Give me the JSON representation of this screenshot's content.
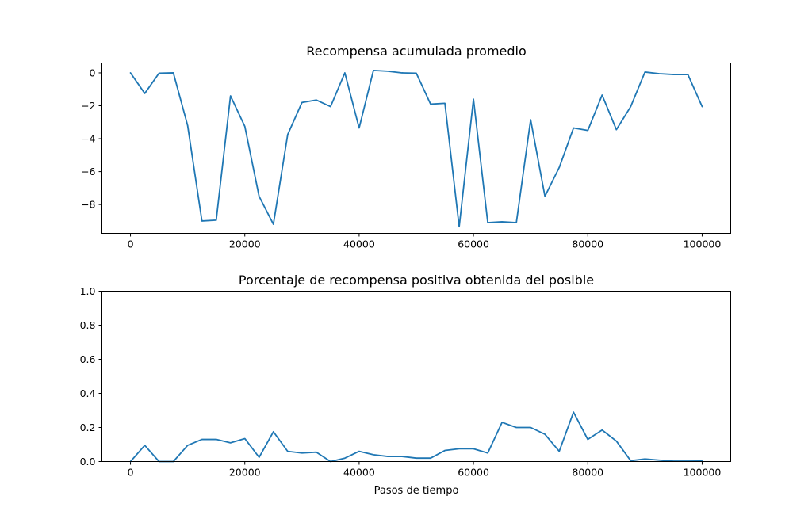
{
  "chart_data": [
    {
      "type": "line",
      "title": "Recompensa acumulada promedio",
      "xlabel": "",
      "ylabel": "",
      "xlim": [
        -5000,
        105000
      ],
      "ylim": [
        -9.75,
        0.6
      ],
      "xticks": [
        0,
        20000,
        40000,
        60000,
        80000,
        100000
      ],
      "xtick_labels": [
        "0",
        "20000",
        "40000",
        "60000",
        "80000",
        "100000"
      ],
      "yticks": [
        0,
        -2,
        -4,
        -6,
        -8
      ],
      "ytick_labels": [
        "0",
        "−2",
        "−4",
        "−6",
        "−8"
      ],
      "grid": false,
      "color": "#1f77b4",
      "series": [
        {
          "x": [
            0,
            2500,
            5000,
            7500,
            10000,
            12500,
            15000,
            17500,
            20000,
            22500,
            25000,
            27500,
            30000,
            32500,
            35000,
            37500,
            40000,
            42500,
            45000,
            47500,
            50000,
            52500,
            55000,
            57500,
            60000,
            62500,
            65000,
            67500,
            70000,
            72500,
            75000,
            77500,
            80000,
            82500,
            85000,
            87500,
            90000,
            92500,
            95000,
            97500,
            100000
          ],
          "values": [
            0,
            -1.25,
            -0.02,
            0,
            -3.2,
            -9.0,
            -8.95,
            -1.4,
            -3.25,
            -7.5,
            -9.2,
            -3.75,
            -1.8,
            -1.65,
            -2.05,
            0,
            -3.35,
            0.15,
            0.1,
            0,
            -0.02,
            -1.9,
            -1.85,
            -9.35,
            -1.6,
            -9.1,
            -9.05,
            -9.1,
            -2.85,
            -7.5,
            -5.75,
            -3.35,
            -3.5,
            -1.35,
            -3.45,
            -2.05,
            0.05,
            -0.05,
            -0.1,
            -0.1,
            -2.05
          ]
        }
      ]
    },
    {
      "type": "line",
      "title": "Porcentaje de recompensa positiva obtenida del posible",
      "xlabel": "Pasos de tiempo",
      "ylabel": "",
      "xlim": [
        -5000,
        105000
      ],
      "ylim": [
        0,
        1.0
      ],
      "xticks": [
        0,
        20000,
        40000,
        60000,
        80000,
        100000
      ],
      "xtick_labels": [
        "0",
        "20000",
        "40000",
        "60000",
        "80000",
        "100000"
      ],
      "yticks": [
        0,
        0.2,
        0.4,
        0.6,
        0.8,
        1.0
      ],
      "ytick_labels": [
        "0.0",
        "0.2",
        "0.4",
        "0.6",
        "0.8",
        "1.0"
      ],
      "grid": false,
      "color": "#1f77b4",
      "series": [
        {
          "x": [
            0,
            2500,
            5000,
            7500,
            10000,
            12500,
            15000,
            17500,
            20000,
            22500,
            25000,
            27500,
            30000,
            32500,
            35000,
            37500,
            40000,
            42500,
            45000,
            47500,
            50000,
            52500,
            55000,
            57500,
            60000,
            62500,
            65000,
            67500,
            70000,
            72500,
            75000,
            77500,
            80000,
            82500,
            85000,
            87500,
            90000,
            92500,
            95000,
            97500,
            100000
          ],
          "values": [
            0,
            0.095,
            0,
            0,
            0.095,
            0.13,
            0.13,
            0.11,
            0.135,
            0.025,
            0.175,
            0.06,
            0.05,
            0.055,
            0,
            0.02,
            0.06,
            0.04,
            0.03,
            0.03,
            0.02,
            0.02,
            0.065,
            0.075,
            0.075,
            0.05,
            0.23,
            0.2,
            0.2,
            0.16,
            0.06,
            0.29,
            0.13,
            0.185,
            0.12,
            0.005,
            0.015,
            0.008,
            0.002,
            0.002,
            0.003
          ]
        }
      ]
    }
  ]
}
